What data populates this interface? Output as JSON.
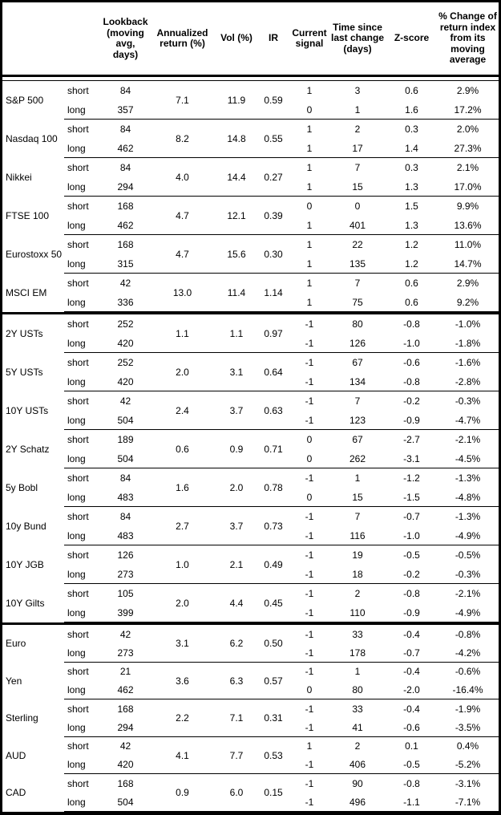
{
  "chart_data": {
    "type": "table",
    "headers": {
      "asset": "",
      "horizon": "",
      "lookback": "Lookback\n(moving\navg, days)",
      "annualized_return": "Annualized\nreturn (%)",
      "vol": "Vol (%)",
      "ir": "IR",
      "current_signal": "Current\nsignal",
      "time_since_last_change": "Time since\nlast change\n(days)",
      "z_score": "Z-score",
      "pct_change": "% Change of\nreturn index\nfrom its\nmoving\naverage"
    },
    "sections": [
      {
        "groups": [
          {
            "name": "S&P 500",
            "annualized_return": "7.1",
            "vol": "11.9",
            "ir": "0.59",
            "rows": [
              {
                "horizon": "short",
                "lookback": "84",
                "signal": "1",
                "time_since": "3",
                "z_score": "0.6",
                "pct_change": "2.9%"
              },
              {
                "horizon": "long",
                "lookback": "357",
                "signal": "0",
                "time_since": "1",
                "z_score": "1.6",
                "pct_change": "17.2%"
              }
            ]
          },
          {
            "name": "Nasdaq 100",
            "annualized_return": "8.2",
            "vol": "14.8",
            "ir": "0.55",
            "rows": [
              {
                "horizon": "short",
                "lookback": "84",
                "signal": "1",
                "time_since": "2",
                "z_score": "0.3",
                "pct_change": "2.0%"
              },
              {
                "horizon": "long",
                "lookback": "462",
                "signal": "1",
                "time_since": "17",
                "z_score": "1.4",
                "pct_change": "27.3%"
              }
            ]
          },
          {
            "name": "Nikkei",
            "annualized_return": "4.0",
            "vol": "14.4",
            "ir": "0.27",
            "rows": [
              {
                "horizon": "short",
                "lookback": "84",
                "signal": "1",
                "time_since": "7",
                "z_score": "0.3",
                "pct_change": "2.1%"
              },
              {
                "horizon": "long",
                "lookback": "294",
                "signal": "1",
                "time_since": "15",
                "z_score": "1.3",
                "pct_change": "17.0%"
              }
            ]
          },
          {
            "name": "FTSE 100",
            "annualized_return": "4.7",
            "vol": "12.1",
            "ir": "0.39",
            "rows": [
              {
                "horizon": "short",
                "lookback": "168",
                "signal": "0",
                "time_since": "0",
                "z_score": "1.5",
                "pct_change": "9.9%"
              },
              {
                "horizon": "long",
                "lookback": "462",
                "signal": "1",
                "time_since": "401",
                "z_score": "1.3",
                "pct_change": "13.6%"
              }
            ]
          },
          {
            "name": "Eurostoxx 50",
            "annualized_return": "4.7",
            "vol": "15.6",
            "ir": "0.30",
            "rows": [
              {
                "horizon": "short",
                "lookback": "168",
                "signal": "1",
                "time_since": "22",
                "z_score": "1.2",
                "pct_change": "11.0%"
              },
              {
                "horizon": "long",
                "lookback": "315",
                "signal": "1",
                "time_since": "135",
                "z_score": "1.2",
                "pct_change": "14.7%"
              }
            ]
          },
          {
            "name": "MSCI EM",
            "annualized_return": "13.0",
            "vol": "11.4",
            "ir": "1.14",
            "rows": [
              {
                "horizon": "short",
                "lookback": "42",
                "signal": "1",
                "time_since": "7",
                "z_score": "0.6",
                "pct_change": "2.9%"
              },
              {
                "horizon": "long",
                "lookback": "336",
                "signal": "1",
                "time_since": "75",
                "z_score": "0.6",
                "pct_change": "9.2%"
              }
            ]
          }
        ]
      },
      {
        "groups": [
          {
            "name": "2Y USTs",
            "annualized_return": "1.1",
            "vol": "1.1",
            "ir": "0.97",
            "rows": [
              {
                "horizon": "short",
                "lookback": "252",
                "signal": "-1",
                "time_since": "80",
                "z_score": "-0.8",
                "pct_change": "-1.0%"
              },
              {
                "horizon": "long",
                "lookback": "420",
                "signal": "-1",
                "time_since": "126",
                "z_score": "-1.0",
                "pct_change": "-1.8%"
              }
            ]
          },
          {
            "name": "5Y USTs",
            "annualized_return": "2.0",
            "vol": "3.1",
            "ir": "0.64",
            "rows": [
              {
                "horizon": "short",
                "lookback": "252",
                "signal": "-1",
                "time_since": "67",
                "z_score": "-0.6",
                "pct_change": "-1.6%"
              },
              {
                "horizon": "long",
                "lookback": "420",
                "signal": "-1",
                "time_since": "134",
                "z_score": "-0.8",
                "pct_change": "-2.8%"
              }
            ]
          },
          {
            "name": "10Y USTs",
            "annualized_return": "2.4",
            "vol": "3.7",
            "ir": "0.63",
            "rows": [
              {
                "horizon": "short",
                "lookback": "42",
                "signal": "-1",
                "time_since": "7",
                "z_score": "-0.2",
                "pct_change": "-0.3%"
              },
              {
                "horizon": "long",
                "lookback": "504",
                "signal": "-1",
                "time_since": "123",
                "z_score": "-0.9",
                "pct_change": "-4.7%"
              }
            ]
          },
          {
            "name": "2Y Schatz",
            "annualized_return": "0.6",
            "vol": "0.9",
            "ir": "0.71",
            "rows": [
              {
                "horizon": "short",
                "lookback": "189",
                "signal": "0",
                "time_since": "67",
                "z_score": "-2.7",
                "pct_change": "-2.1%"
              },
              {
                "horizon": "long",
                "lookback": "504",
                "signal": "0",
                "time_since": "262",
                "z_score": "-3.1",
                "pct_change": "-4.5%"
              }
            ]
          },
          {
            "name": "5y Bobl",
            "annualized_return": "1.6",
            "vol": "2.0",
            "ir": "0.78",
            "rows": [
              {
                "horizon": "short",
                "lookback": "84",
                "signal": "-1",
                "time_since": "1",
                "z_score": "-1.2",
                "pct_change": "-1.3%"
              },
              {
                "horizon": "long",
                "lookback": "483",
                "signal": "0",
                "time_since": "15",
                "z_score": "-1.5",
                "pct_change": "-4.8%"
              }
            ]
          },
          {
            "name": "10y Bund",
            "annualized_return": "2.7",
            "vol": "3.7",
            "ir": "0.73",
            "rows": [
              {
                "horizon": "short",
                "lookback": "84",
                "signal": "-1",
                "time_since": "7",
                "z_score": "-0.7",
                "pct_change": "-1.3%"
              },
              {
                "horizon": "long",
                "lookback": "483",
                "signal": "-1",
                "time_since": "116",
                "z_score": "-1.0",
                "pct_change": "-4.9%"
              }
            ]
          },
          {
            "name": "10Y JGB",
            "annualized_return": "1.0",
            "vol": "2.1",
            "ir": "0.49",
            "rows": [
              {
                "horizon": "short",
                "lookback": "126",
                "signal": "-1",
                "time_since": "19",
                "z_score": "-0.5",
                "pct_change": "-0.5%"
              },
              {
                "horizon": "long",
                "lookback": "273",
                "signal": "-1",
                "time_since": "18",
                "z_score": "-0.2",
                "pct_change": "-0.3%"
              }
            ]
          },
          {
            "name": "10Y Gilts",
            "annualized_return": "2.0",
            "vol": "4.4",
            "ir": "0.45",
            "rows": [
              {
                "horizon": "short",
                "lookback": "105",
                "signal": "-1",
                "time_since": "2",
                "z_score": "-0.8",
                "pct_change": "-2.1%"
              },
              {
                "horizon": "long",
                "lookback": "399",
                "signal": "-1",
                "time_since": "110",
                "z_score": "-0.9",
                "pct_change": "-4.9%"
              }
            ]
          }
        ]
      },
      {
        "groups": [
          {
            "name": "Euro",
            "annualized_return": "3.1",
            "vol": "6.2",
            "ir": "0.50",
            "rows": [
              {
                "horizon": "short",
                "lookback": "42",
                "signal": "-1",
                "time_since": "33",
                "z_score": "-0.4",
                "pct_change": "-0.8%"
              },
              {
                "horizon": "long",
                "lookback": "273",
                "signal": "-1",
                "time_since": "178",
                "z_score": "-0.7",
                "pct_change": "-4.2%"
              }
            ]
          },
          {
            "name": "Yen",
            "annualized_return": "3.6",
            "vol": "6.3",
            "ir": "0.57",
            "rows": [
              {
                "horizon": "short",
                "lookback": "21",
                "signal": "-1",
                "time_since": "1",
                "z_score": "-0.4",
                "pct_change": "-0.6%"
              },
              {
                "horizon": "long",
                "lookback": "462",
                "signal": "0",
                "time_since": "80",
                "z_score": "-2.0",
                "pct_change": "-16.4%"
              }
            ]
          },
          {
            "name": "Sterling",
            "annualized_return": "2.2",
            "vol": "7.1",
            "ir": "0.31",
            "rows": [
              {
                "horizon": "short",
                "lookback": "168",
                "signal": "-1",
                "time_since": "33",
                "z_score": "-0.4",
                "pct_change": "-1.9%"
              },
              {
                "horizon": "long",
                "lookback": "294",
                "signal": "-1",
                "time_since": "41",
                "z_score": "-0.6",
                "pct_change": "-3.5%"
              }
            ]
          },
          {
            "name": "AUD",
            "annualized_return": "4.1",
            "vol": "7.7",
            "ir": "0.53",
            "rows": [
              {
                "horizon": "short",
                "lookback": "42",
                "signal": "1",
                "time_since": "2",
                "z_score": "0.1",
                "pct_change": "0.4%"
              },
              {
                "horizon": "long",
                "lookback": "420",
                "signal": "-1",
                "time_since": "406",
                "z_score": "-0.5",
                "pct_change": "-5.2%"
              }
            ]
          },
          {
            "name": "CAD",
            "annualized_return": "0.9",
            "vol": "6.0",
            "ir": "0.15",
            "rows": [
              {
                "horizon": "short",
                "lookback": "168",
                "signal": "-1",
                "time_since": "90",
                "z_score": "-0.8",
                "pct_change": "-3.1%"
              },
              {
                "horizon": "long",
                "lookback": "504",
                "signal": "-1",
                "time_since": "496",
                "z_score": "-1.1",
                "pct_change": "-7.1%"
              }
            ]
          }
        ]
      }
    ],
    "colors": {
      "text": "#000000",
      "background": "#ffffff",
      "border": "#000000"
    }
  }
}
